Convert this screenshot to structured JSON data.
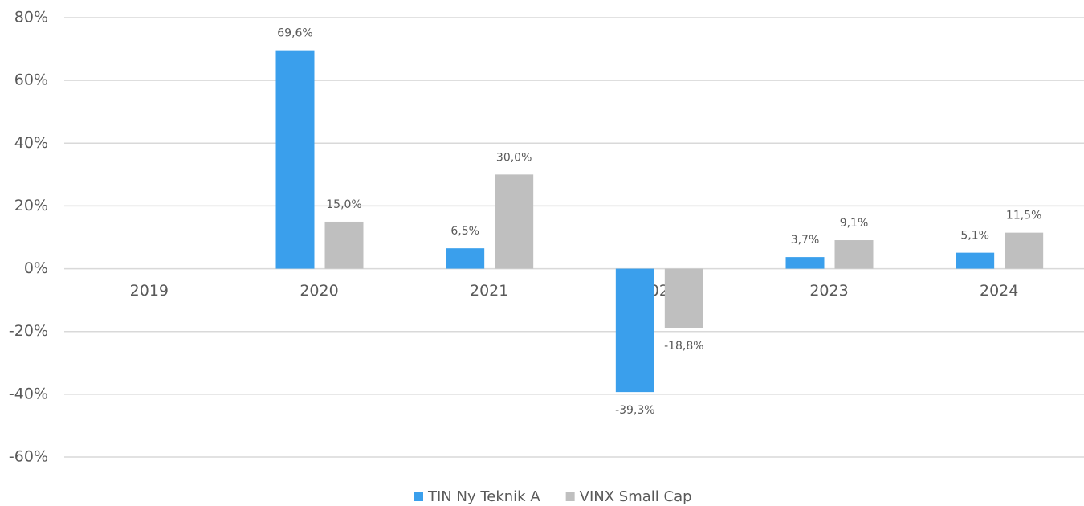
{
  "chart_data": {
    "type": "bar",
    "categories": [
      "2019",
      "2020",
      "2021",
      "2022",
      "2023",
      "2024"
    ],
    "series": [
      {
        "name": "TIN Ny Teknik A",
        "color": "#3a9fec",
        "values": [
          null,
          69.6,
          6.5,
          -39.3,
          3.7,
          5.1
        ],
        "value_labels": [
          null,
          "69,6%",
          "6,5%",
          "-39,3%",
          "3,7%",
          "5,1%"
        ]
      },
      {
        "name": "VINX Small Cap",
        "color": "#bfbfbf",
        "values": [
          null,
          15.0,
          30.0,
          -18.8,
          9.1,
          11.5
        ],
        "value_labels": [
          null,
          "15,0%",
          "30,0%",
          "-18,8%",
          "9,1%",
          "11,5%"
        ]
      }
    ],
    "ylim": [
      -60,
      80
    ],
    "yticks": [
      {
        "value": -60,
        "label": "-60%"
      },
      {
        "value": -40,
        "label": "-40%"
      },
      {
        "value": -20,
        "label": "-20%"
      },
      {
        "value": 0,
        "label": "0%"
      },
      {
        "value": 20,
        "label": "20%"
      },
      {
        "value": 40,
        "label": "40%"
      },
      {
        "value": 60,
        "label": "60%"
      },
      {
        "value": 80,
        "label": "80%"
      }
    ],
    "grid": true,
    "legend": "bottom"
  }
}
